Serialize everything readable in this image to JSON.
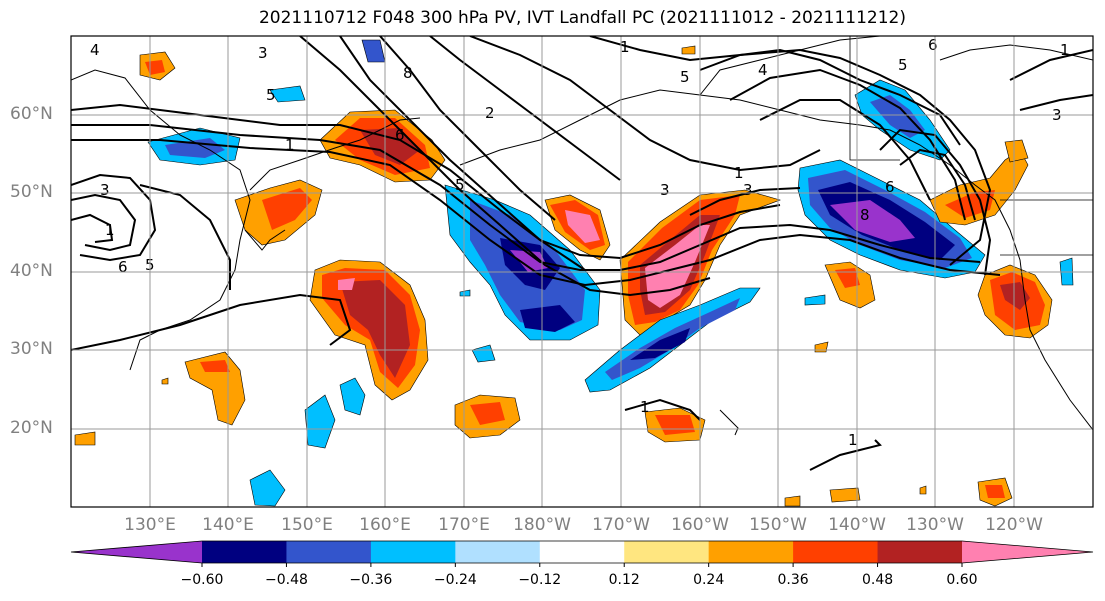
{
  "title": "2021110712 F048 300 hPa PV, IVT Landfall PC (2021111012 - 2021111212)",
  "lat_labels": [
    "60°N",
    "50°N",
    "40°N",
    "30°N",
    "20°N"
  ],
  "lon_labels": [
    "130°E",
    "140°E",
    "150°E",
    "160°E",
    "170°E",
    "180°W",
    "170°W",
    "160°W",
    "150°W",
    "140°W",
    "130°W",
    "120°W"
  ],
  "colorbar": {
    "ticks": [
      "−0.60",
      "−0.48",
      "−0.36",
      "−0.24",
      "−0.12",
      "0.12",
      "0.24",
      "0.36",
      "0.48",
      "0.60"
    ],
    "colors": [
      "#9933cc",
      "#000080",
      "#3355cc",
      "#00bfff",
      "#b0e0ff",
      "#ffffff",
      "#ffe680",
      "#ffa000",
      "#ff4000",
      "#b22222",
      "#ff80b0"
    ]
  },
  "contour_labels": [
    "3",
    "5",
    "3",
    "1",
    "6",
    "1",
    "4",
    "1",
    "5",
    "4",
    "6",
    "3",
    "5",
    "6",
    "1",
    "8",
    "2",
    "5",
    "3",
    "1",
    "3",
    "1",
    "5",
    "6",
    "8",
    "1"
  ]
}
